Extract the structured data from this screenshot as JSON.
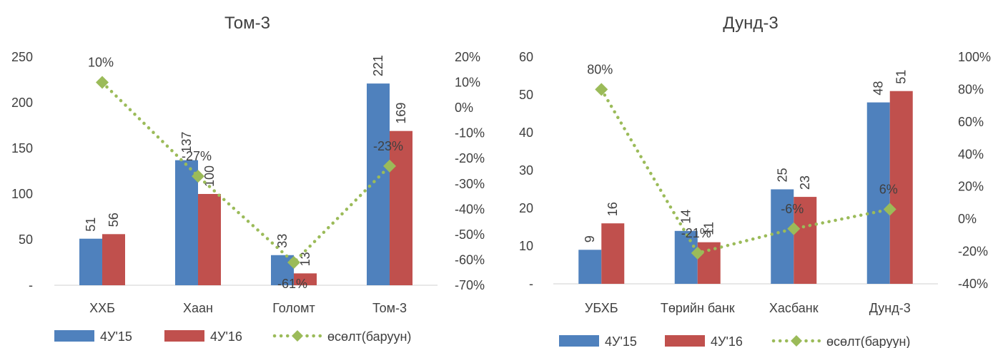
{
  "chart_data": [
    {
      "type": "bar",
      "title": "Том-3",
      "categories": [
        "ХХБ",
        "Хаан",
        "Голомт",
        "Том-3"
      ],
      "y_ticks": [
        "-",
        "50",
        "100",
        "150",
        "200",
        "250"
      ],
      "y_right_ticks": [
        "-70%",
        "-60%",
        "-50%",
        "-40%",
        "-30%",
        "-20%",
        "-10%",
        "0%",
        "10%",
        "20%"
      ],
      "ylim": [
        0,
        250
      ],
      "y2lim": [
        -70,
        20
      ],
      "series": [
        {
          "name": "4У'15",
          "type": "bar",
          "color": "#4f81bd",
          "values": [
            51,
            137,
            33,
            221
          ],
          "labels": [
            "51",
            "137",
            "33",
            "221"
          ]
        },
        {
          "name": "4У'16",
          "type": "bar",
          "color": "#c0504d",
          "values": [
            56,
            100,
            13,
            169
          ],
          "labels": [
            "56",
            "100",
            "13",
            "169"
          ]
        },
        {
          "name": "өсөлт(баруун)",
          "type": "line",
          "axis": "right",
          "color": "#9bbb59",
          "values": [
            10,
            -27,
            -61,
            -23
          ],
          "labels": [
            "10%",
            "-27%",
            "-61%",
            "-23%"
          ]
        }
      ],
      "grid": false,
      "legend_position": "bottom"
    },
    {
      "type": "bar",
      "title": "Дунд-3",
      "categories": [
        "УБХБ",
        "Төрийн банк",
        "Хасбанк",
        "Дунд-3"
      ],
      "y_ticks": [
        "-",
        "10",
        "20",
        "30",
        "40",
        "50",
        "60"
      ],
      "y_right_ticks": [
        "-40%",
        "-20%",
        "0%",
        "20%",
        "40%",
        "60%",
        "80%",
        "100%"
      ],
      "ylim": [
        0,
        60
      ],
      "y2lim": [
        -40,
        100
      ],
      "series": [
        {
          "name": "4У'15",
          "type": "bar",
          "color": "#4f81bd",
          "values": [
            9,
            14,
            25,
            48
          ],
          "labels": [
            "9",
            "14",
            "25",
            "48"
          ]
        },
        {
          "name": "4У'16",
          "type": "bar",
          "color": "#c0504d",
          "values": [
            16,
            11,
            23,
            51
          ],
          "labels": [
            "16",
            "11",
            "23",
            "51"
          ]
        },
        {
          "name": "өсөлт(баруун)",
          "type": "line",
          "axis": "right",
          "color": "#9bbb59",
          "values": [
            80,
            -21,
            -6,
            6
          ],
          "labels": [
            "80%",
            "-21%",
            "-6%",
            "6%"
          ]
        }
      ],
      "grid": false,
      "legend_position": "bottom"
    }
  ]
}
